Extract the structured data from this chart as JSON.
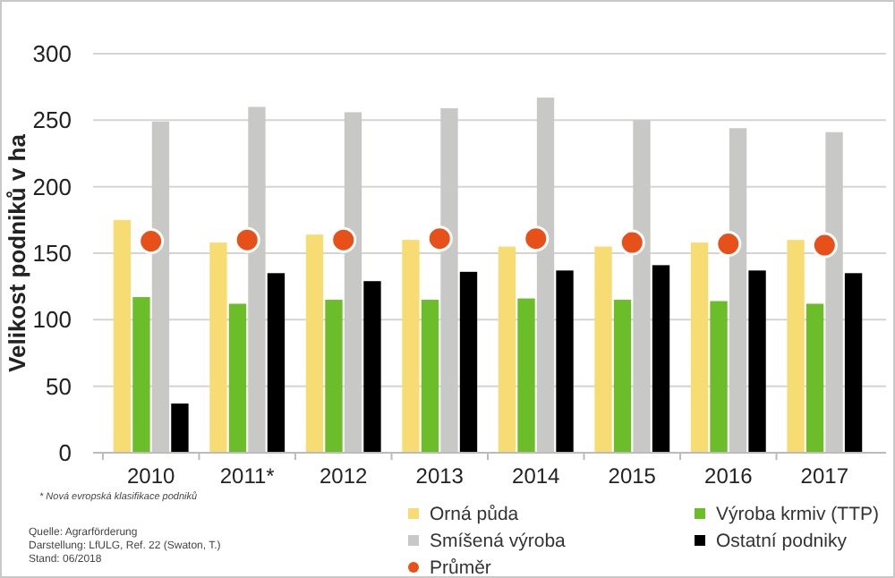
{
  "chart_data": {
    "type": "bar",
    "ylabel": "Velikost podniků v ha",
    "categories": [
      "2010",
      "2011*",
      "2012",
      "2013",
      "2014",
      "2015",
      "2016",
      "2017"
    ],
    "series": [
      {
        "name": "Orná půda",
        "color": "#f7dc74",
        "values": [
          175,
          158,
          164,
          160,
          155,
          155,
          158,
          160
        ]
      },
      {
        "name": "Výroba krmiv (TTP)",
        "color": "#6cbd2a",
        "values": [
          117,
          112,
          115,
          115,
          116,
          115,
          114,
          112
        ]
      },
      {
        "name": "Smíšená výroba",
        "color": "#c8c8c6",
        "values": [
          249,
          260,
          256,
          259,
          267,
          250,
          244,
          241
        ]
      },
      {
        "name": "Ostatní podniky",
        "color": "#000000",
        "values": [
          37,
          135,
          129,
          136,
          137,
          141,
          137,
          135
        ]
      },
      {
        "name": "Průměr",
        "type": "scatter",
        "color": "#e8501a",
        "marker": "circle",
        "values": [
          159,
          160,
          160,
          161,
          161,
          158,
          157,
          156
        ]
      }
    ],
    "ylim": [
      0,
      300
    ],
    "yticks": [
      0,
      50,
      100,
      150,
      200,
      250,
      300
    ],
    "grid": "y",
    "legend": "bottom",
    "annotations": [
      "* Nová evropská klasifikace podniků",
      "Quelle: Agrarförderung",
      "Darstellung: LfULG, Ref. 22 (Swaton, T.)",
      "Stand: 06/2018"
    ]
  }
}
